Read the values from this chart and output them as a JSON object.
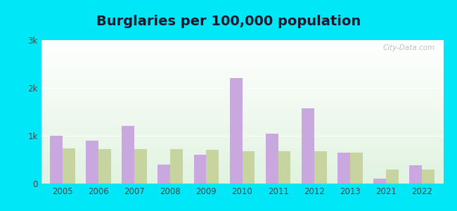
{
  "title": "Burglaries per 100,000 population",
  "years": [
    2005,
    2006,
    2007,
    2008,
    2009,
    2010,
    2011,
    2012,
    2013,
    2021,
    2022
  ],
  "magnolia": [
    1000,
    900,
    1200,
    400,
    600,
    2200,
    1050,
    1580,
    650,
    100,
    380
  ],
  "us_avg": [
    730,
    720,
    720,
    720,
    700,
    680,
    680,
    670,
    640,
    290,
    290
  ],
  "magnolia_color": "#c9a8e0",
  "us_avg_color": "#c8d4a0",
  "bar_width": 0.35,
  "ylim": [
    0,
    3000
  ],
  "yticks": [
    0,
    1000,
    2000,
    3000
  ],
  "ytick_labels": [
    "0",
    "1k",
    "2k",
    "3k"
  ],
  "title_fontsize": 14,
  "tick_fontsize": 8.5,
  "legend_fontsize": 9,
  "outer_bg": "#00e8f8",
  "watermark": "City-Data.com"
}
